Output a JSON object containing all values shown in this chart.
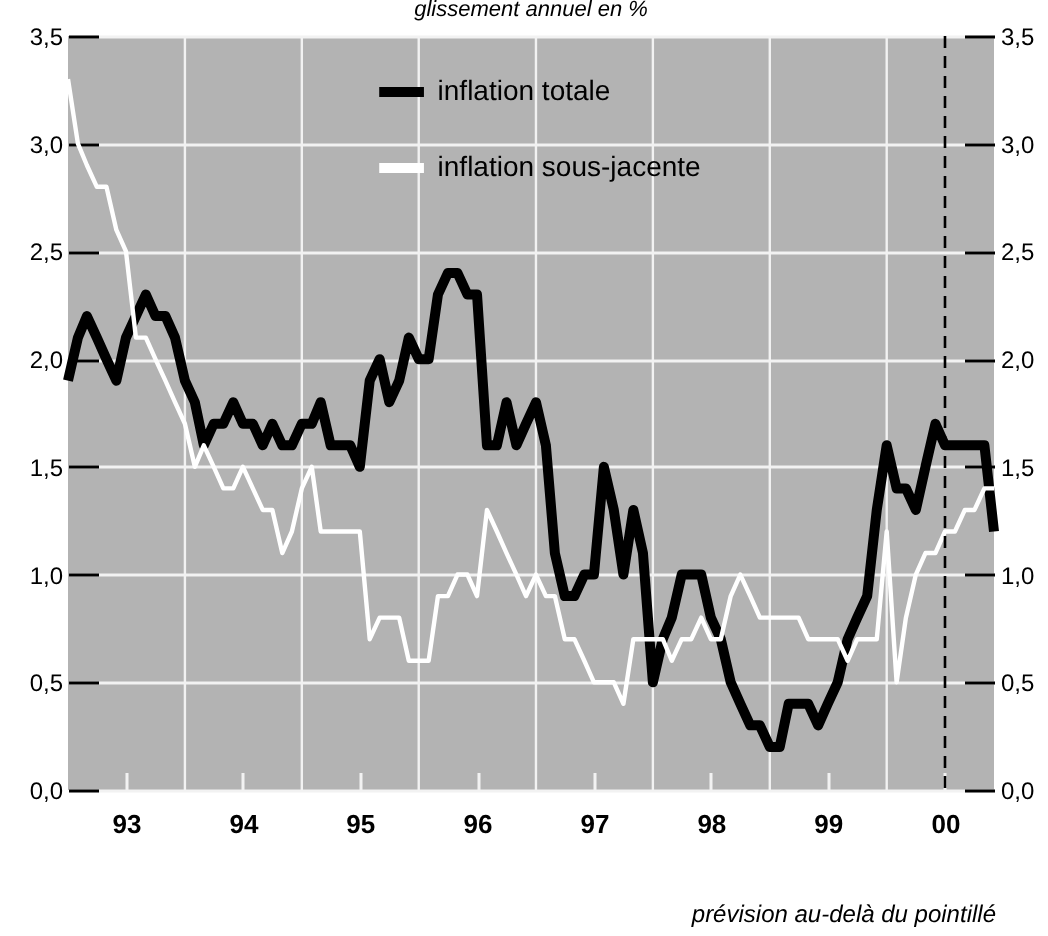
{
  "chart_data": {
    "type": "line",
    "subtitle": "glissement annuel en %",
    "annotations": [
      "prévision au-delà du pointillé"
    ],
    "x": [
      "1993-01",
      "1993-02",
      "1993-03",
      "1993-04",
      "1993-05",
      "1993-06",
      "1993-07",
      "1993-08",
      "1993-09",
      "1993-10",
      "1993-11",
      "1993-12",
      "1994-01",
      "1994-02",
      "1994-03",
      "1994-04",
      "1994-05",
      "1994-06",
      "1994-07",
      "1994-08",
      "1994-09",
      "1994-10",
      "1994-11",
      "1994-12",
      "1995-01",
      "1995-02",
      "1995-03",
      "1995-04",
      "1995-05",
      "1995-06",
      "1995-07",
      "1995-08",
      "1995-09",
      "1995-10",
      "1995-11",
      "1995-12",
      "1996-01",
      "1996-02",
      "1996-03",
      "1996-04",
      "1996-05",
      "1996-06",
      "1996-07",
      "1996-08",
      "1996-09",
      "1996-10",
      "1996-11",
      "1996-12",
      "1997-01",
      "1997-02",
      "1997-03",
      "1997-04",
      "1997-05",
      "1997-06",
      "1997-07",
      "1997-08",
      "1997-09",
      "1997-10",
      "1997-11",
      "1997-12",
      "1998-01",
      "1998-02",
      "1998-03",
      "1998-04",
      "1998-05",
      "1998-06",
      "1998-07",
      "1998-08",
      "1998-09",
      "1998-10",
      "1998-11",
      "1998-12",
      "1999-01",
      "1999-02",
      "1999-03",
      "1999-04",
      "1999-05",
      "1999-06",
      "1999-07",
      "1999-08",
      "1999-09",
      "1999-10",
      "1999-11",
      "1999-12",
      "2000-01",
      "2000-02",
      "2000-03",
      "2000-04",
      "2000-05",
      "2000-06",
      "2000-07",
      "2000-08",
      "2000-09",
      "2000-10",
      "2000-11",
      "2000-12"
    ],
    "series": [
      {
        "name": "inflation totale",
        "color": "#000000",
        "values": [
          1.9,
          2.1,
          2.2,
          2.1,
          2.0,
          1.9,
          2.1,
          2.2,
          2.3,
          2.2,
          2.2,
          2.1,
          1.9,
          1.8,
          1.6,
          1.7,
          1.7,
          1.8,
          1.7,
          1.7,
          1.6,
          1.7,
          1.6,
          1.6,
          1.7,
          1.7,
          1.8,
          1.6,
          1.6,
          1.6,
          1.5,
          1.9,
          2.0,
          1.8,
          1.9,
          2.1,
          2.0,
          2.0,
          2.3,
          2.4,
          2.4,
          2.3,
          2.3,
          1.6,
          1.6,
          1.8,
          1.6,
          1.7,
          1.8,
          1.6,
          1.1,
          0.9,
          0.9,
          1.0,
          1.0,
          1.5,
          1.3,
          1.0,
          1.3,
          1.1,
          0.5,
          0.7,
          0.8,
          1.0,
          1.0,
          1.0,
          0.8,
          0.7,
          0.5,
          0.4,
          0.3,
          0.3,
          0.2,
          0.2,
          0.4,
          0.4,
          0.4,
          0.3,
          0.4,
          0.5,
          0.7,
          0.8,
          0.9,
          1.3,
          1.6,
          1.4,
          1.4,
          1.3,
          1.5,
          1.7,
          1.6,
          1.6,
          1.6,
          1.6,
          1.6,
          1.2
        ]
      },
      {
        "name": "inflation sous-jacente",
        "color": "#ffffff",
        "values": [
          3.3,
          3.0,
          2.9,
          2.8,
          2.8,
          2.6,
          2.5,
          2.1,
          2.1,
          2.0,
          1.9,
          1.8,
          1.7,
          1.5,
          1.6,
          1.5,
          1.4,
          1.4,
          1.5,
          1.4,
          1.3,
          1.3,
          1.1,
          1.2,
          1.4,
          1.5,
          1.2,
          1.2,
          1.2,
          1.2,
          1.2,
          0.7,
          0.8,
          0.8,
          0.8,
          0.6,
          0.6,
          0.6,
          0.9,
          0.9,
          1.0,
          1.0,
          0.9,
          1.3,
          1.2,
          1.1,
          1.0,
          0.9,
          1.0,
          0.9,
          0.9,
          0.7,
          0.7,
          0.6,
          0.5,
          0.5,
          0.5,
          0.4,
          0.7,
          0.7,
          0.7,
          0.7,
          0.6,
          0.7,
          0.7,
          0.8,
          0.7,
          0.7,
          0.9,
          1.0,
          0.9,
          0.8,
          0.8,
          0.8,
          0.8,
          0.8,
          0.7,
          0.7,
          0.7,
          0.7,
          0.6,
          0.7,
          0.7,
          0.7,
          1.2,
          0.5,
          0.8,
          1.0,
          1.1,
          1.1,
          1.2,
          1.2,
          1.3,
          1.3,
          1.4,
          1.4
        ]
      }
    ],
    "xlim": [
      "1993-01",
      "2000-12"
    ],
    "xticks": [
      {
        "value": "1993-07",
        "label": "93"
      },
      {
        "value": "1994-01",
        "label": null
      },
      {
        "value": "1994-07",
        "label": "94"
      },
      {
        "value": "1995-01",
        "label": null
      },
      {
        "value": "1995-07",
        "label": "95"
      },
      {
        "value": "1996-01",
        "label": null
      },
      {
        "value": "1996-07",
        "label": "96"
      },
      {
        "value": "1997-01",
        "label": null
      },
      {
        "value": "1997-07",
        "label": "97"
      },
      {
        "value": "1998-01",
        "label": null
      },
      {
        "value": "1998-07",
        "label": "98"
      },
      {
        "value": "1999-01",
        "label": null
      },
      {
        "value": "1999-07",
        "label": "99"
      },
      {
        "value": "2000-01",
        "label": null
      },
      {
        "value": "2000-07",
        "label": "00"
      }
    ],
    "ylim": [
      0,
      3.5
    ],
    "yticks": [
      {
        "value": 0,
        "label": "0,0"
      },
      {
        "value": 0.5,
        "label": "0,5"
      },
      {
        "value": 1,
        "label": "1,0"
      },
      {
        "value": 1.5,
        "label": "1,5"
      },
      {
        "value": 2,
        "label": "2,0"
      },
      {
        "value": 2.5,
        "label": "2,5"
      },
      {
        "value": 3,
        "label": "3,0"
      },
      {
        "value": 3.5,
        "label": "3,5"
      }
    ],
    "y2lim": [
      0,
      3.5
    ],
    "y2ticks": [
      {
        "value": 0,
        "label": "0,0"
      },
      {
        "value": 0.5,
        "label": "0,5"
      },
      {
        "value": 1,
        "label": "1,0"
      },
      {
        "value": 1.5,
        "label": "1,5"
      },
      {
        "value": 2,
        "label": "2,0"
      },
      {
        "value": 2.5,
        "label": "2,5"
      },
      {
        "value": 3,
        "label": "3,0"
      },
      {
        "value": 3.5,
        "label": "3,5"
      }
    ],
    "ref_lines": [
      {
        "axis": "x",
        "value": "2000-07",
        "color": "#000000",
        "line_style": "dashed"
      }
    ],
    "grid": true,
    "legend": "top"
  }
}
